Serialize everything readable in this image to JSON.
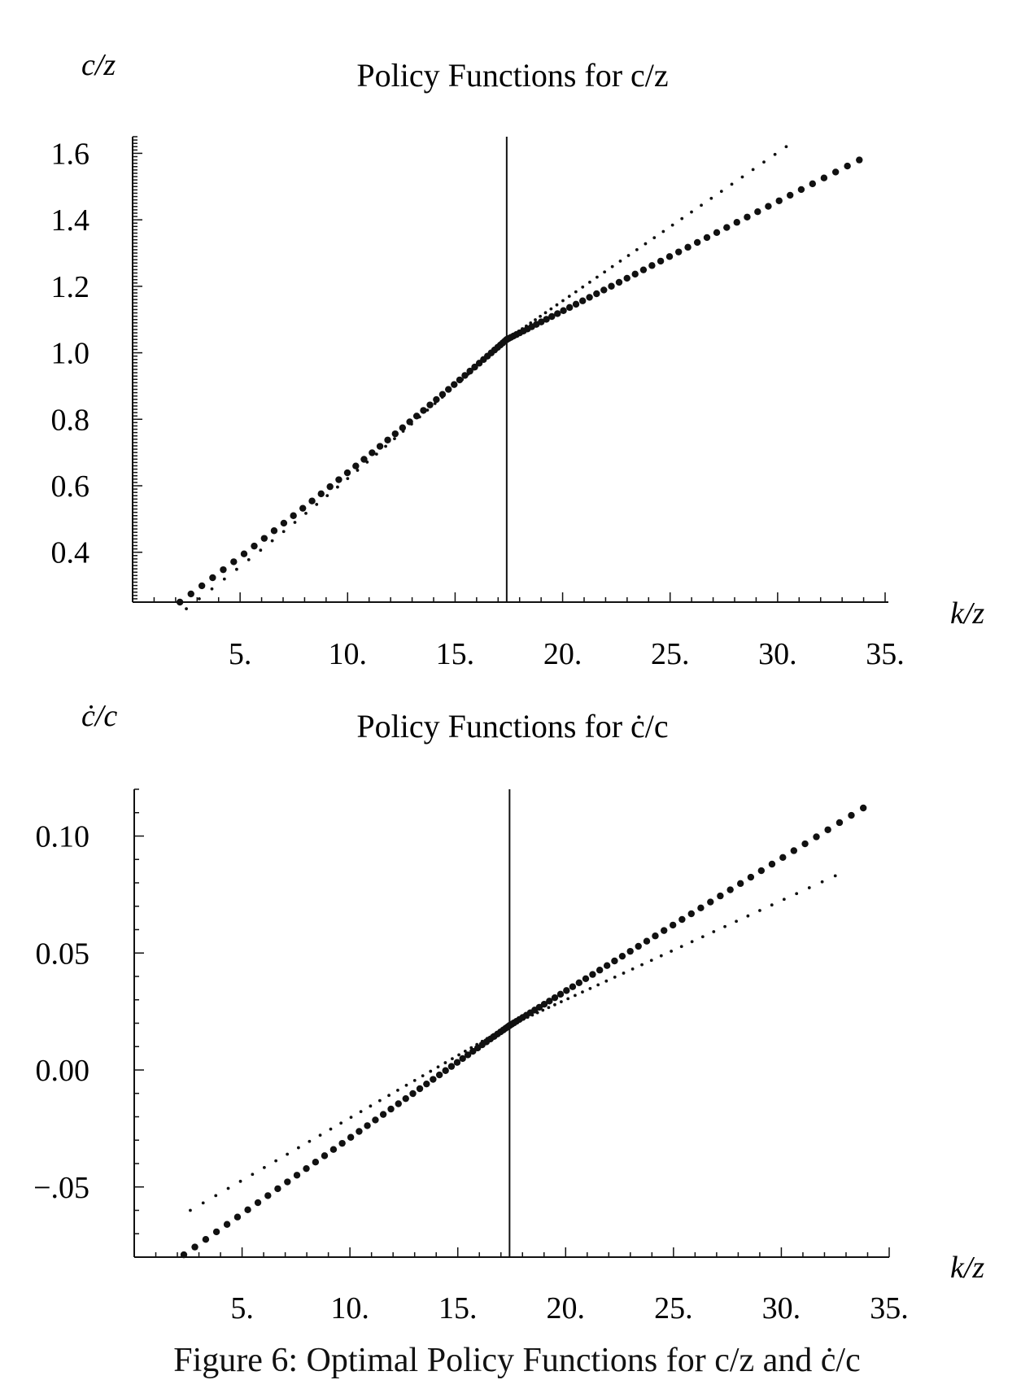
{
  "caption": "Figure 6: Optimal Policy Functions for c/z and ċ/c",
  "chart_data": [
    {
      "type": "scatter",
      "title": "Policy Functions for c/z",
      "ylabel": "c/z",
      "xlabel": "k/z",
      "xlim": [
        0,
        35
      ],
      "ylim": [
        0.25,
        1.65
      ],
      "xticks": [
        "5.",
        "10.",
        "15.",
        "20.",
        "25.",
        "30.",
        "35."
      ],
      "xtick_values": [
        5,
        10,
        15,
        20,
        25,
        30,
        35
      ],
      "yticks": [
        "0.4",
        "0.6",
        "0.8",
        "1.0",
        "1.2",
        "1.4",
        "1.6"
      ],
      "ytick_values": [
        0.4,
        0.6,
        0.8,
        1.0,
        1.2,
        1.4,
        1.6
      ],
      "vline_x": 17.4,
      "grid": false,
      "series": [
        {
          "marker": "large",
          "x_start": 2.2,
          "x_end": 33.8,
          "y_start": 0.25,
          "y_knot": 1.04,
          "y_end": 1.58,
          "count": 95,
          "spacing": "clustered near vline"
        },
        {
          "marker": "small",
          "x_start": 2.5,
          "x_end": 30.4,
          "y_start": 0.23,
          "y_knot": 1.04,
          "y_end": 1.62,
          "count": 80,
          "spacing": "clustered near vline"
        }
      ]
    },
    {
      "type": "scatter",
      "title": "Policy Functions for ċ/c",
      "ylabel": "ċ/c",
      "xlabel": "k/z",
      "xlim": [
        0,
        35
      ],
      "ylim": [
        -0.08,
        0.12
      ],
      "xticks": [
        "5.",
        "10.",
        "15.",
        "20.",
        "25.",
        "30.",
        "35."
      ],
      "xtick_values": [
        5,
        10,
        15,
        20,
        25,
        30,
        35
      ],
      "yticks": [
        "0.10",
        "0.05",
        "0.00",
        "−.05"
      ],
      "ytick_values": [
        0.1,
        0.05,
        0.0,
        -0.05
      ],
      "vline_x": 17.4,
      "grid": false,
      "series": [
        {
          "marker": "large",
          "x_start": 2.3,
          "x_end": 33.8,
          "y_start": -0.079,
          "y_knot": 0.019,
          "y_end": 0.112,
          "count": 95,
          "spacing": "clustered near vline"
        },
        {
          "marker": "small",
          "x_start": 2.6,
          "x_end": 32.5,
          "y_start": -0.06,
          "y_knot": 0.019,
          "y_end": 0.083,
          "count": 80,
          "spacing": "clustered near vline"
        }
      ]
    }
  ]
}
